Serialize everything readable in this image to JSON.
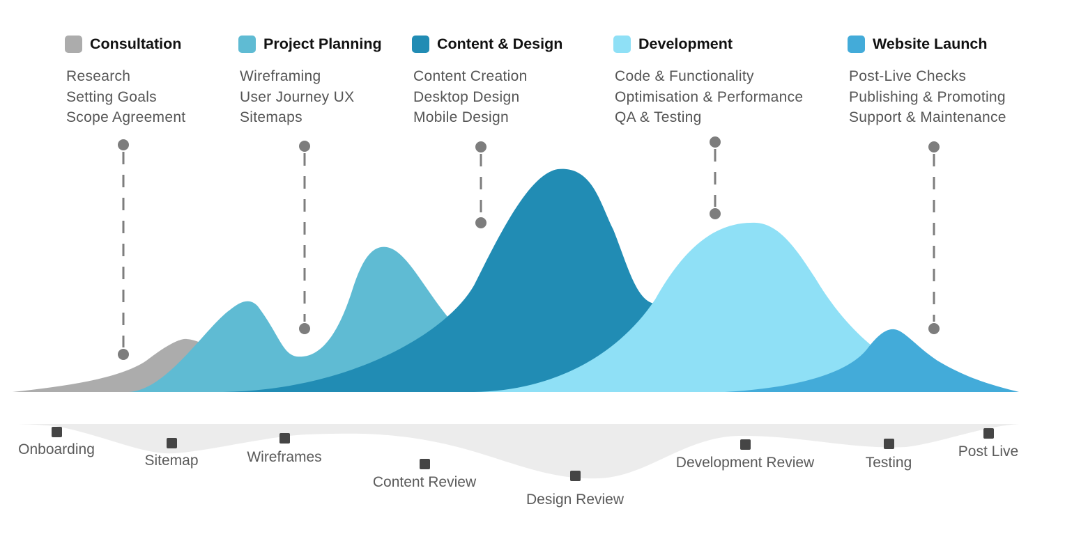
{
  "colors": {
    "consultation": "#acacac",
    "planning": "#5fbbd3",
    "design": "#218cb4",
    "development": "#8fe0f6",
    "launch": "#43abd9",
    "connector": "#7d7d7d",
    "milestone": "#454545",
    "band": "#ececec"
  },
  "phases": [
    {
      "id": "consultation",
      "title": "Consultation",
      "color": "#acacac",
      "items": [
        "Research",
        "Setting Goals",
        "Scope Agreement"
      ]
    },
    {
      "id": "planning",
      "title": "Project Planning",
      "color": "#5fbbd3",
      "items": [
        "Wireframing",
        "User Journey UX",
        "Sitemaps"
      ]
    },
    {
      "id": "design",
      "title": "Content & Design",
      "color": "#218cb4",
      "items": [
        "Content Creation",
        "Desktop Design",
        "Mobile Design"
      ]
    },
    {
      "id": "development",
      "title": "Development",
      "color": "#8fe0f6",
      "items": [
        "Code & Functionality",
        "Optimisation & Performance",
        "QA & Testing"
      ]
    },
    {
      "id": "launch",
      "title": "Website Launch",
      "color": "#43abd9",
      "items": [
        "Post-Live Checks",
        "Publishing & Promoting",
        "Support & Maintenance"
      ]
    }
  ],
  "milestones": [
    {
      "label": "Onboarding"
    },
    {
      "label": "Sitemap"
    },
    {
      "label": "Wireframes"
    },
    {
      "label": "Content Review"
    },
    {
      "label": "Design Review"
    },
    {
      "label": "Development Review"
    },
    {
      "label": "Testing"
    },
    {
      "label": "Post Live"
    }
  ]
}
